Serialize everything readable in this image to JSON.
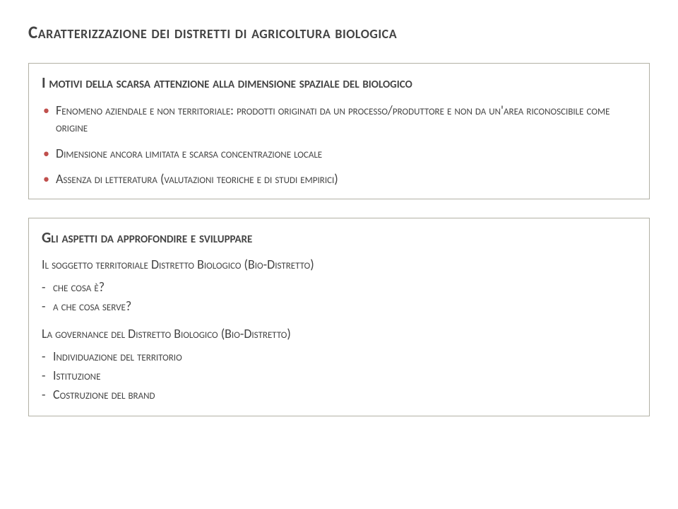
{
  "pageTitle": "Caratterizzazione dei distretti di agricoltura biologica",
  "box1": {
    "title": "I motivi della scarsa attenzione alla dimensione spaziale del biologico",
    "bullets": [
      "Fenomeno aziendale e non territoriale: prodotti originati da un processo/produttore e non da un'area riconoscibile come origine",
      "Dimensione ancora limitata e scarsa concentrazione locale",
      "Assenza di letteratura (valutazioni teoriche e di studi empirici)"
    ]
  },
  "box2": {
    "title": "Gli aspetti da approfondire e sviluppare",
    "section1": {
      "heading": "Il soggetto territoriale Distretto Biologico (Bio-Distretto)",
      "items": [
        "che cosa è?",
        "a che cosa serve?"
      ]
    },
    "section2": {
      "heading": "La governance del Distretto Biologico (Bio-Distretto)",
      "items": [
        "Individuazione del territorio",
        "Istituzione",
        "Costruzione del brand"
      ]
    }
  },
  "colors": {
    "text": "#444444",
    "bullet": "#c0504d",
    "border": "#b2b1a5",
    "background": "#ffffff"
  }
}
